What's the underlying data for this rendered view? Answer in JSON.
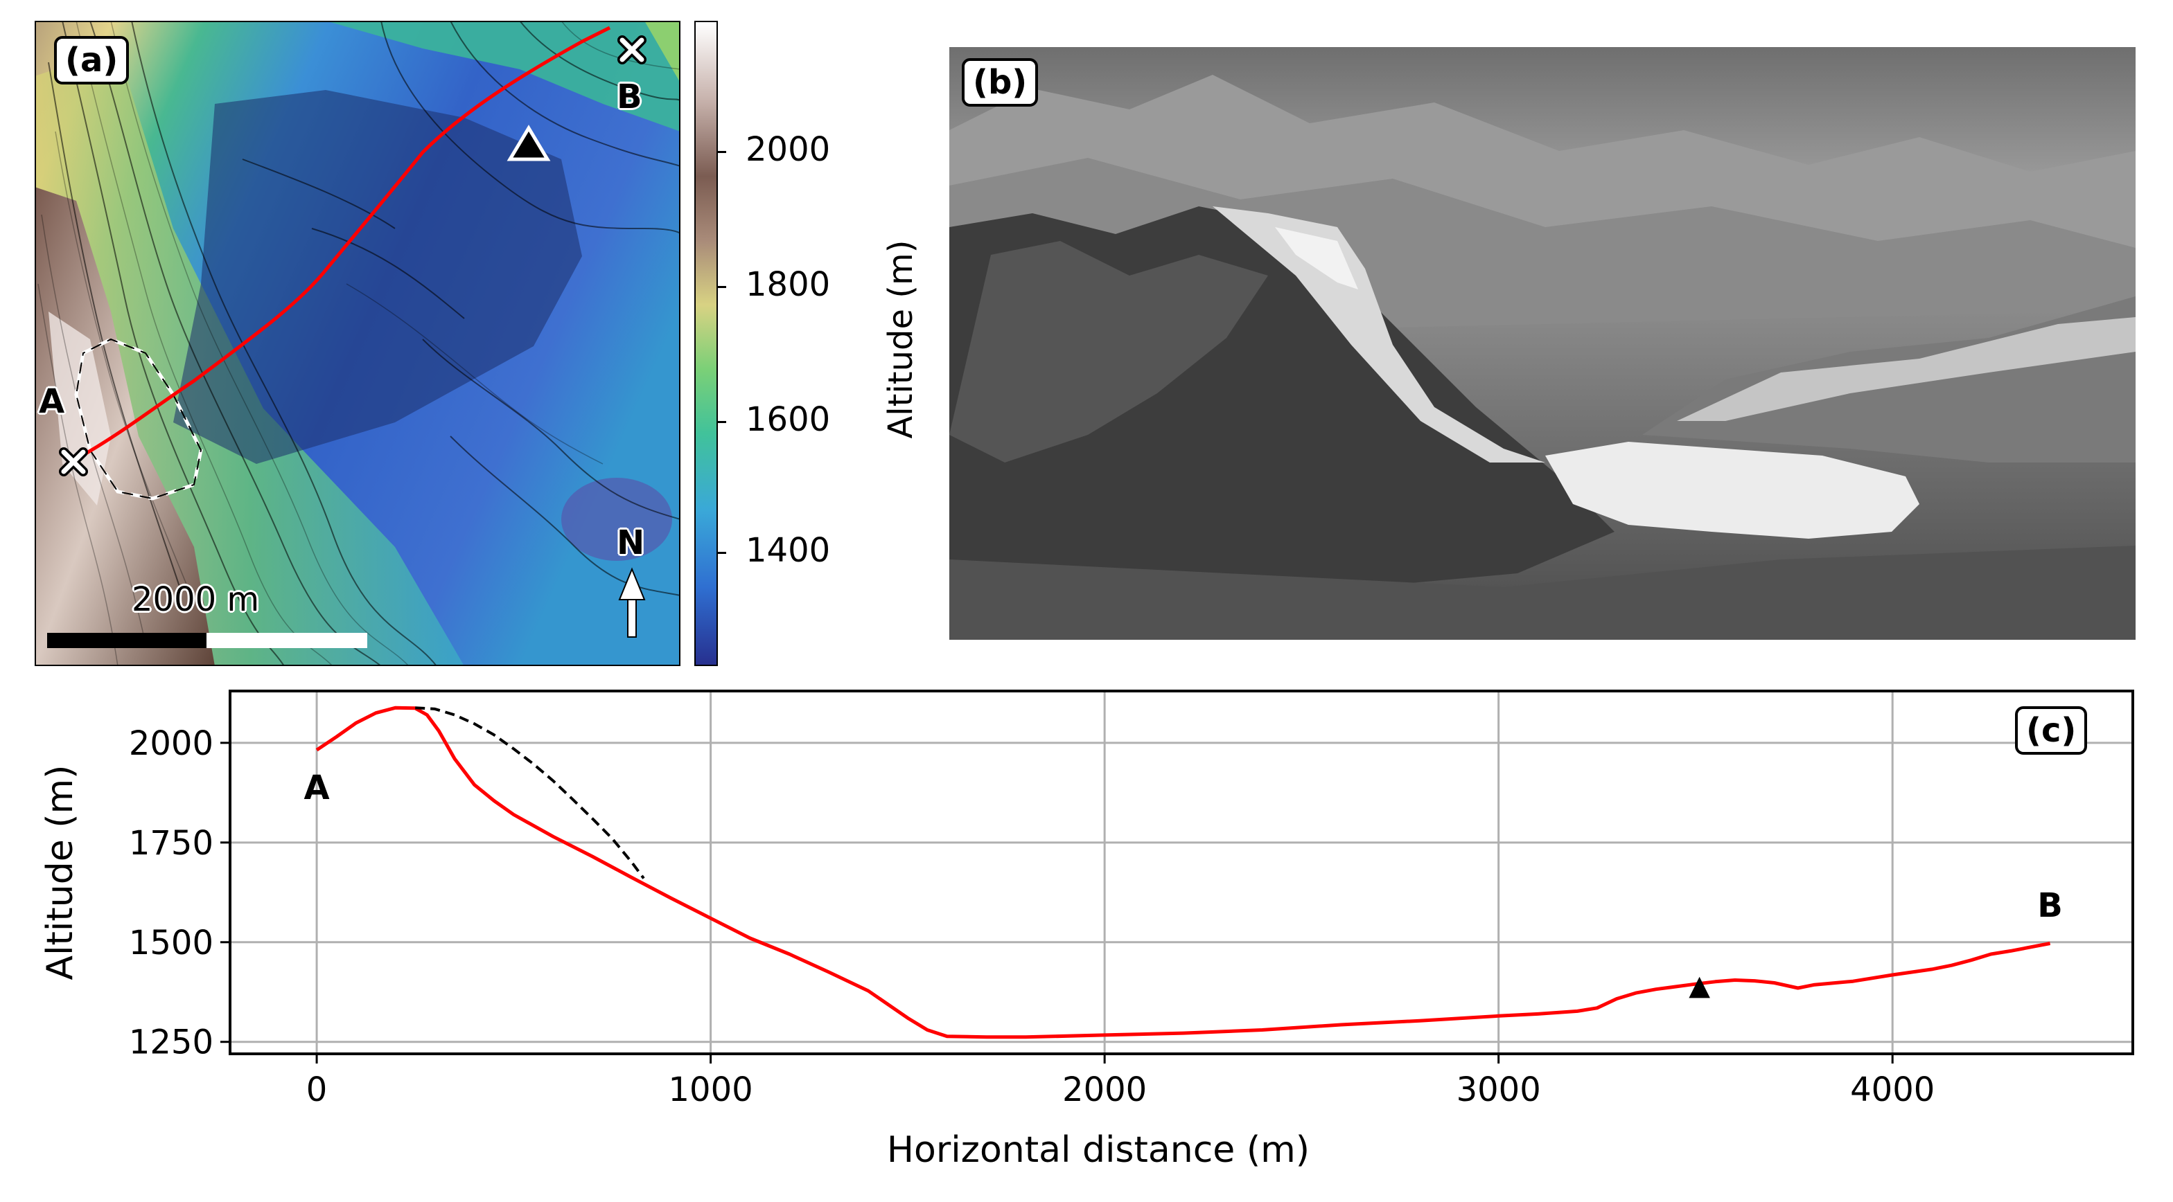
{
  "panel_a": {
    "tag": "(a)",
    "point_a": "A",
    "point_b": "B",
    "north": "N",
    "scalebar": "2000 m",
    "colorbar": {
      "label": "Altitude (m)",
      "ticks": [
        "1400",
        "1600",
        "1800",
        "2000"
      ],
      "range": [
        1250,
        2170
      ],
      "colormap": [
        "#27308f",
        "#2f6fd1",
        "#3aa8d8",
        "#41c29a",
        "#7bd077",
        "#d8d283",
        "#a98b79",
        "#7b5c52",
        "#c8b3ad",
        "#ffffff"
      ]
    },
    "line_color": "#ff0000"
  },
  "panel_b": {
    "tag": "(b)"
  },
  "chart_data": {
    "type": "line",
    "tag": "(c)",
    "xlabel": "Horizontal distance (m)",
    "ylabel": "Altitude (m)",
    "xlim": [
      -220,
      4610
    ],
    "ylim": [
      1220,
      2130
    ],
    "xticks": [
      0,
      1000,
      2000,
      3000,
      4000
    ],
    "yticks": [
      1250,
      1500,
      1750,
      2000
    ],
    "grid": true,
    "series": [
      {
        "style": "solid",
        "color": "#ff0000",
        "x": [
          0,
          50,
          100,
          150,
          200,
          250,
          280,
          310,
          350,
          400,
          450,
          500,
          600,
          700,
          800,
          900,
          1000,
          1100,
          1200,
          1300,
          1400,
          1500,
          1550,
          1600,
          1700,
          1800,
          2000,
          2200,
          2400,
          2600,
          2800,
          3000,
          3100,
          3200,
          3250,
          3300,
          3350,
          3400,
          3500,
          3550,
          3600,
          3650,
          3700,
          3760,
          3800,
          3900,
          4000,
          4100,
          4150,
          4200,
          4250,
          4300,
          4400
        ],
        "y": [
          1982,
          2015,
          2050,
          2075,
          2088,
          2087,
          2070,
          2030,
          1960,
          1895,
          1855,
          1820,
          1765,
          1715,
          1662,
          1610,
          1560,
          1510,
          1470,
          1425,
          1378,
          1310,
          1280,
          1264,
          1262,
          1262,
          1267,
          1272,
          1280,
          1293,
          1303,
          1315,
          1320,
          1327,
          1335,
          1358,
          1373,
          1382,
          1395,
          1401,
          1405,
          1403,
          1398,
          1385,
          1393,
          1402,
          1418,
          1432,
          1442,
          1455,
          1470,
          1478,
          1497
        ]
      },
      {
        "style": "dashed",
        "color": "#000000",
        "x": [
          250,
          300,
          350,
          400,
          450,
          500,
          550,
          600,
          650,
          700,
          750,
          800,
          830
        ],
        "y": [
          2088,
          2085,
          2070,
          2048,
          2020,
          1985,
          1947,
          1905,
          1858,
          1810,
          1760,
          1700,
          1660
        ]
      }
    ],
    "annotations": [
      {
        "text": "A",
        "x": 0,
        "y": 1890
      },
      {
        "text": "B",
        "x": 4400,
        "y": 1595
      },
      {
        "text": "▲",
        "x": 3510,
        "y": 1400
      }
    ]
  }
}
